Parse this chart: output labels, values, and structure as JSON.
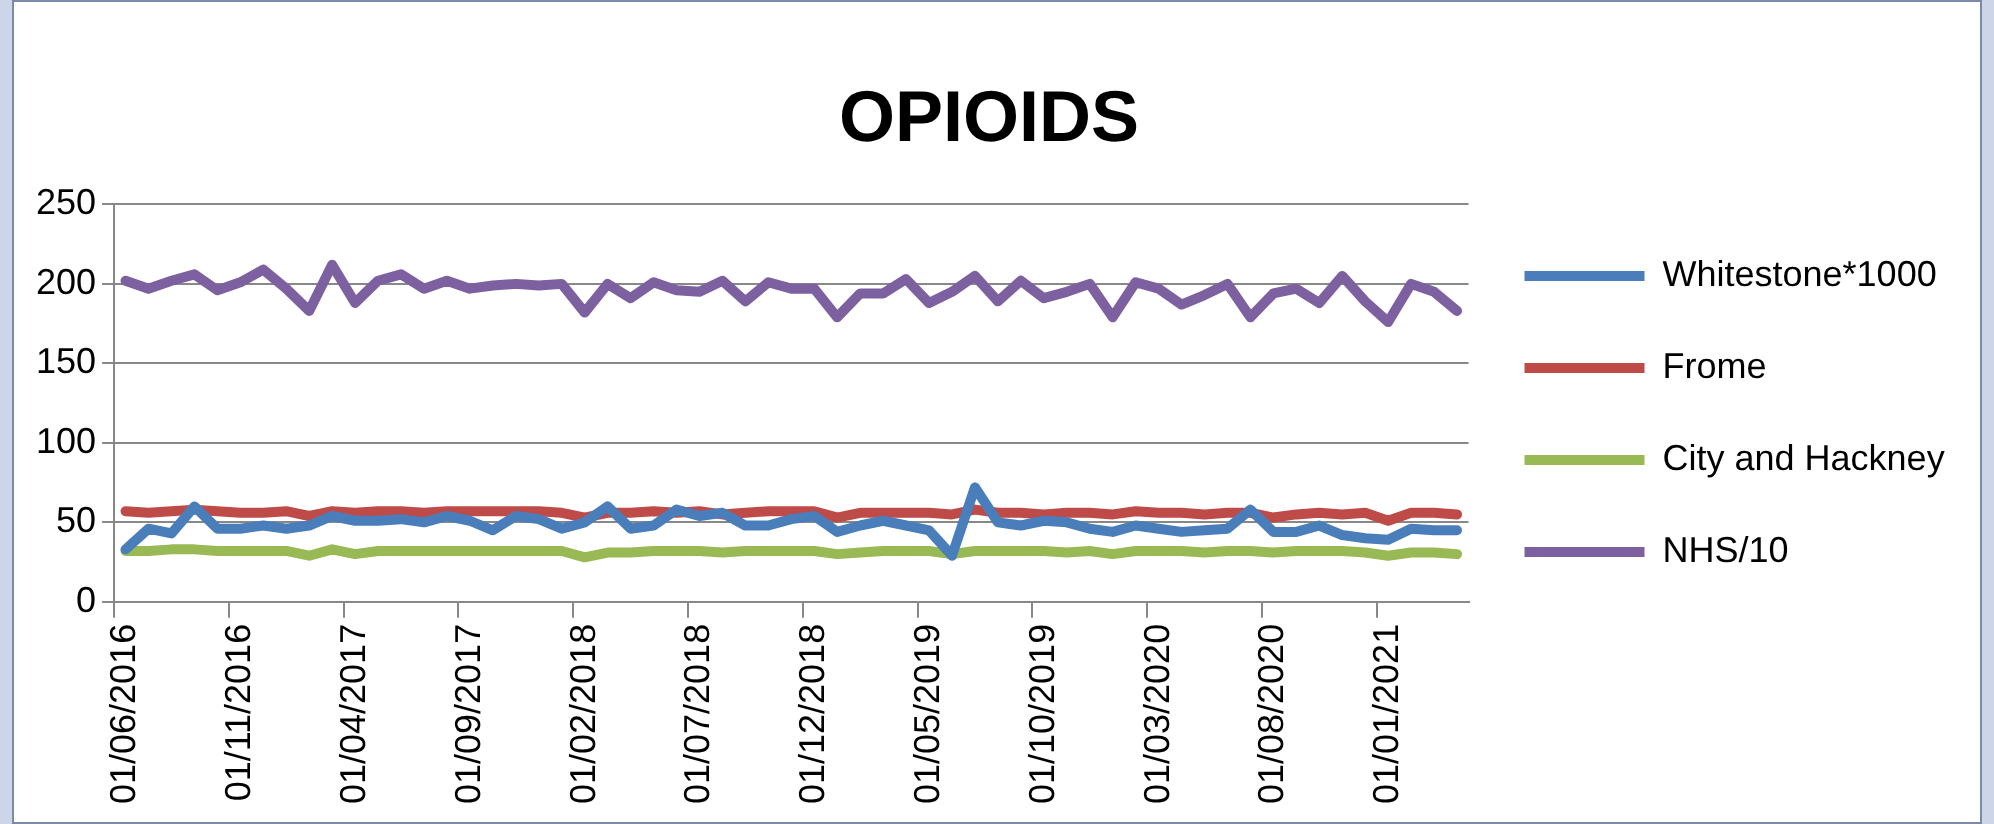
{
  "chart_data": {
    "type": "line",
    "title": "OPIOIDS",
    "categories": [
      "01/06/2016",
      null,
      null,
      null,
      null,
      "01/11/2016",
      null,
      null,
      null,
      null,
      "01/04/2017",
      null,
      null,
      null,
      null,
      "01/09/2017",
      null,
      null,
      null,
      null,
      "01/02/2018",
      null,
      null,
      null,
      null,
      "01/07/2018",
      null,
      null,
      null,
      null,
      "01/12/2018",
      null,
      null,
      null,
      null,
      "01/05/2019",
      null,
      null,
      null,
      null,
      "01/10/2019",
      null,
      null,
      null,
      null,
      "01/03/2020",
      null,
      null,
      null,
      null,
      "01/08/2020",
      null,
      null,
      null,
      null,
      "01/01/2021",
      null,
      null,
      null
    ],
    "series": [
      {
        "name": "Whitestone*1000",
        "color": "#4a7ebb",
        "values": [
          33,
          46,
          43,
          60,
          46,
          46,
          48,
          46,
          48,
          54,
          51,
          51,
          52,
          50,
          54,
          51,
          45,
          54,
          52,
          46,
          50,
          60,
          46,
          48,
          58,
          54,
          56,
          48,
          48,
          52,
          54,
          44,
          48,
          51,
          48,
          45,
          29,
          72,
          50,
          48,
          51,
          50,
          46,
          44,
          48,
          46,
          44,
          45,
          46,
          58,
          44,
          44,
          48,
          42,
          40,
          39,
          46,
          45,
          45
        ]
      },
      {
        "name": "Frome",
        "color": "#be4b48",
        "values": [
          57,
          56,
          57,
          58,
          57,
          56,
          56,
          57,
          54,
          57,
          56,
          57,
          57,
          56,
          57,
          57,
          57,
          57,
          57,
          56,
          53,
          56,
          56,
          57,
          56,
          57,
          55,
          56,
          57,
          57,
          57,
          53,
          56,
          56,
          56,
          56,
          55,
          58,
          56,
          56,
          55,
          56,
          56,
          55,
          57,
          56,
          56,
          55,
          56,
          56,
          53,
          55,
          56,
          55,
          56,
          51,
          56,
          56,
          55
        ]
      },
      {
        "name": "City and Hackney",
        "color": "#98b954",
        "values": [
          32,
          32,
          33,
          33,
          32,
          32,
          32,
          32,
          29,
          33,
          30,
          32,
          32,
          32,
          32,
          32,
          32,
          32,
          32,
          32,
          28,
          31,
          31,
          32,
          32,
          32,
          31,
          32,
          32,
          32,
          32,
          30,
          31,
          32,
          32,
          32,
          30,
          32,
          32,
          32,
          32,
          31,
          32,
          30,
          32,
          32,
          32,
          31,
          32,
          32,
          31,
          32,
          32,
          32,
          31,
          29,
          31,
          31,
          30
        ]
      },
      {
        "name": "NHS/10",
        "color": "#7d60a0",
        "values": [
          202,
          197,
          202,
          206,
          196,
          201,
          209,
          197,
          183,
          212,
          188,
          202,
          206,
          197,
          202,
          197,
          199,
          200,
          199,
          200,
          182,
          200,
          191,
          201,
          196,
          195,
          202,
          189,
          201,
          197,
          197,
          179,
          194,
          194,
          203,
          188,
          195,
          205,
          189,
          202,
          191,
          195,
          200,
          179,
          201,
          197,
          187,
          193,
          200,
          179,
          194,
          197,
          188,
          205,
          189,
          176,
          200,
          195,
          183
        ]
      }
    ],
    "ylim": [
      0,
      250
    ],
    "yticks": [
      0,
      50,
      100,
      150,
      200,
      250
    ],
    "grid": "y",
    "legend": "right",
    "marker": "none",
    "line_style": "solid"
  }
}
